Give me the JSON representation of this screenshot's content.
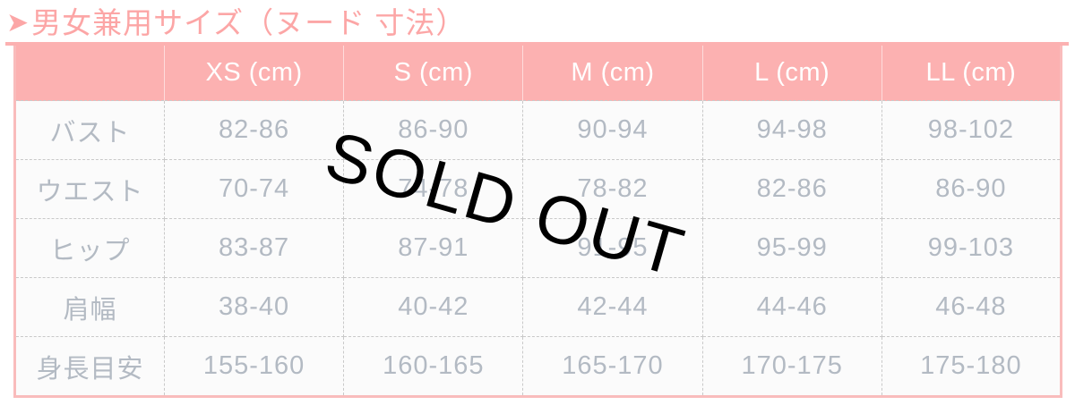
{
  "title": {
    "arrow": "➤",
    "text": "男女兼用サイズ（ヌード 寸法）"
  },
  "table": {
    "corner_label": "",
    "columns": [
      "XS (cm)",
      "S (cm)",
      "M (cm)",
      "L (cm)",
      "LL (cm)"
    ],
    "rows": [
      {
        "label": "バスト",
        "values": [
          "82-86",
          "86-90",
          "90-94",
          "94-98",
          "98-102"
        ]
      },
      {
        "label": "ウエスト",
        "values": [
          "70-74",
          "74-78",
          "78-82",
          "82-86",
          "86-90"
        ]
      },
      {
        "label": "ヒップ",
        "values": [
          "83-87",
          "87-91",
          "91-95",
          "95-99",
          "99-103"
        ]
      },
      {
        "label": "肩幅",
        "values": [
          "38-40",
          "40-42",
          "42-44",
          "44-46",
          "46-48"
        ]
      },
      {
        "label": "身長目安",
        "values": [
          "155-160",
          "160-165",
          "165-170",
          "170-175",
          "175-180"
        ]
      }
    ]
  },
  "overlay": {
    "text": "SOLD OUT"
  },
  "colors": {
    "accent_pink": "#fcb1b1",
    "title_pink": "#fca6a6",
    "border_pink": "#f9bcbc",
    "cell_text": "#b3bac3",
    "watermark": "#000000"
  }
}
